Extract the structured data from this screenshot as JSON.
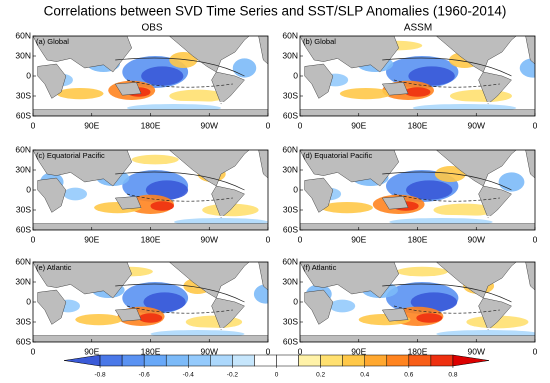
{
  "title": "Correlations between SVD Time Series and SST/SLP Anomalies (1960-2014)",
  "columns": [
    "OBS",
    "ASSM"
  ],
  "panels": [
    {
      "label": "(a) Global"
    },
    {
      "label": "(b) Global"
    },
    {
      "label": "(c) Equatorial Pacific"
    },
    {
      "label": "(d) Equatorial Pacific"
    },
    {
      "label": "(e) Atlantic"
    },
    {
      "label": "(f) Atlantic"
    }
  ],
  "lat_ticks": [
    "60N",
    "30N",
    "0",
    "30S",
    "60S"
  ],
  "lon_ticks": [
    "0",
    "90E",
    "180E",
    "90W",
    "0"
  ],
  "colorbar": {
    "range": [
      -0.9,
      0.9
    ],
    "ticks": [
      -0.8,
      -0.6,
      -0.4,
      -0.2,
      0,
      0.2,
      0.4,
      0.6,
      0.8
    ],
    "colors": [
      "#3a5ad8",
      "#4a78e8",
      "#5a92f2",
      "#68a8f8",
      "#7cbaf8",
      "#94cafc",
      "#acd8fc",
      "#c6e6fc",
      "#ffffff",
      "#ffffff",
      "#fff2a8",
      "#ffe070",
      "#ffc848",
      "#ffa830",
      "#ff8420",
      "#f85e18",
      "#ee3010",
      "#dc0000"
    ]
  }
}
